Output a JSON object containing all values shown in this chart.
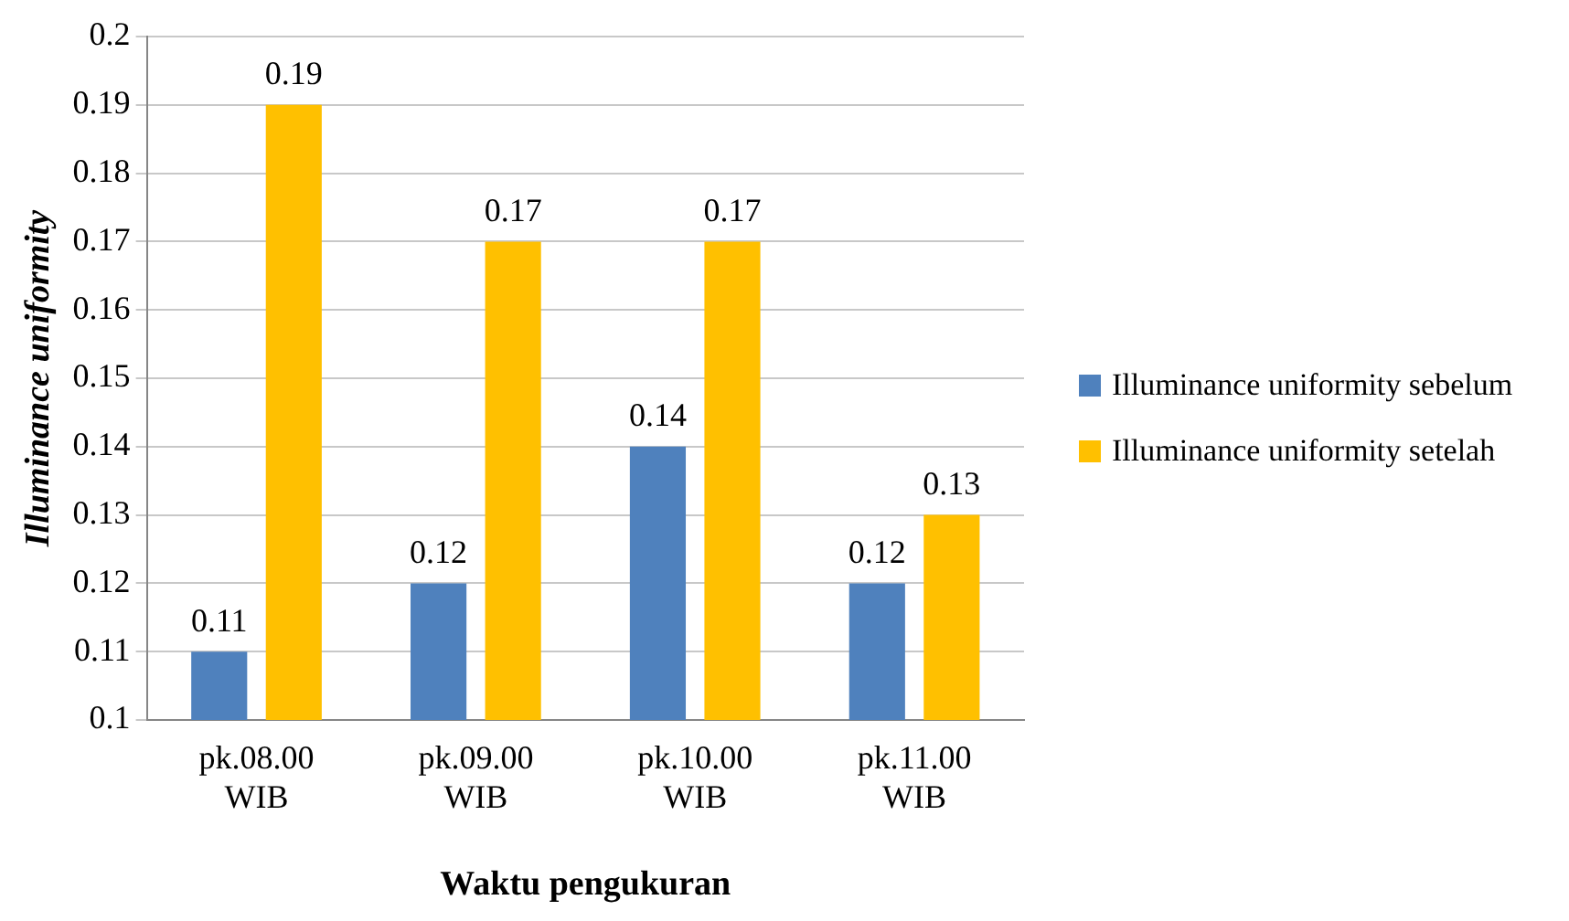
{
  "chart_data": {
    "type": "bar",
    "xlabel": "Waktu pengukuran",
    "ylabel": "Illuminance uniformity",
    "categories": [
      "pk.08.00 WIB",
      "pk.09.00 WIB",
      "pk.10.00 WIB",
      "pk.11.00 WIB"
    ],
    "series": [
      {
        "name": "Illuminance uniformity sebelum",
        "color": "#4f81bd",
        "values": [
          0.11,
          0.12,
          0.14,
          0.12
        ]
      },
      {
        "name": "Illuminance uniformity setelah",
        "color": "#ffc000",
        "values": [
          0.19,
          0.17,
          0.17,
          0.13
        ]
      }
    ],
    "ylim": [
      0.1,
      0.2
    ],
    "yticks": [
      0.1,
      0.11,
      0.12,
      0.13,
      0.14,
      0.15,
      0.16,
      0.17,
      0.18,
      0.19,
      0.2
    ],
    "grid": "y",
    "legend": "right",
    "data_labels": true
  }
}
